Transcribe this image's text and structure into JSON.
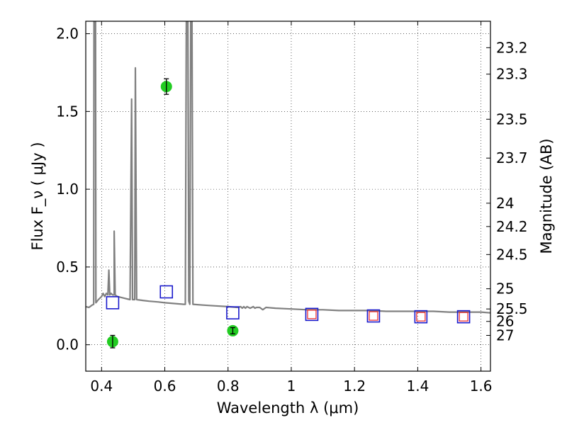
{
  "chart_data": {
    "type": "scatter",
    "xlabel": "Wavelength  λ (μm)",
    "ylabel": "Flux  F_ν  ( μJy )",
    "ylabel_right": "Magnitude (AB)",
    "xlim": [
      0.35,
      1.63
    ],
    "ylim": [
      -0.17,
      2.08
    ],
    "x_ticks": [
      0.4,
      0.6,
      0.8,
      1.0,
      1.2,
      1.4,
      1.6
    ],
    "x_tick_labels": [
      "0.4",
      "0.6",
      "0.8",
      "1",
      "1.2",
      "1.4",
      "1.6"
    ],
    "y_ticks": [
      0.0,
      0.5,
      1.0,
      1.5,
      2.0
    ],
    "y_tick_labels": [
      "0.0",
      "0.5",
      "1.0",
      "1.5",
      "2.0"
    ],
    "right_ticks": [
      {
        "label": "23.2",
        "flux": 1.91
      },
      {
        "label": "23.3",
        "flux": 1.74
      },
      {
        "label": "23.5",
        "flux": 1.45
      },
      {
        "label": "23.7",
        "flux": 1.2
      },
      {
        "label": "24",
        "flux": 0.91
      },
      {
        "label": "24.2",
        "flux": 0.76
      },
      {
        "label": "24.5",
        "flux": 0.58
      },
      {
        "label": "25",
        "flux": 0.36
      },
      {
        "label": "25.5",
        "flux": 0.23
      },
      {
        "label": "26",
        "flux": 0.15
      },
      {
        "label": "27",
        "flux": 0.06
      }
    ],
    "grid": true,
    "colors": {
      "spectrum": "#808080",
      "detections": "#22cc22",
      "model_boxes": "#1a1acc",
      "inner_boxes": "#ee2222"
    },
    "series": [
      {
        "kind": "line",
        "points": [
          [
            0.35,
            0.245
          ],
          [
            0.36,
            0.24
          ],
          [
            0.37,
            0.255
          ],
          [
            0.375,
            0.26
          ],
          [
            0.376,
            2.08
          ],
          [
            0.381,
            2.08
          ],
          [
            0.382,
            0.27
          ],
          [
            0.39,
            0.29
          ],
          [
            0.4,
            0.31
          ],
          [
            0.405,
            0.33
          ],
          [
            0.41,
            0.31
          ],
          [
            0.415,
            0.33
          ],
          [
            0.42,
            0.32
          ],
          [
            0.423,
            0.48
          ],
          [
            0.426,
            0.32
          ],
          [
            0.43,
            0.33
          ],
          [
            0.435,
            0.32
          ],
          [
            0.44,
            0.32
          ],
          [
            0.44,
            0.73
          ],
          [
            0.443,
            0.32
          ],
          [
            0.45,
            0.31
          ],
          [
            0.47,
            0.3
          ],
          [
            0.49,
            0.29
          ],
          [
            0.495,
            1.58
          ],
          [
            0.498,
            0.29
          ],
          [
            0.505,
            0.29
          ],
          [
            0.507,
            1.78
          ],
          [
            0.511,
            0.29
          ],
          [
            0.53,
            0.285
          ],
          [
            0.55,
            0.28
          ],
          [
            0.58,
            0.275
          ],
          [
            0.6,
            0.27
          ],
          [
            0.63,
            0.265
          ],
          [
            0.66,
            0.26
          ],
          [
            0.665,
            0.26
          ],
          [
            0.668,
            2.08
          ],
          [
            0.673,
            2.08
          ],
          [
            0.676,
            0.28
          ],
          [
            0.679,
            0.26
          ],
          [
            0.682,
            2.08
          ],
          [
            0.686,
            2.08
          ],
          [
            0.689,
            0.26
          ],
          [
            0.72,
            0.255
          ],
          [
            0.76,
            0.25
          ],
          [
            0.8,
            0.245
          ],
          [
            0.83,
            0.24
          ],
          [
            0.84,
            0.245
          ],
          [
            0.845,
            0.235
          ],
          [
            0.85,
            0.245
          ],
          [
            0.855,
            0.235
          ],
          [
            0.86,
            0.245
          ],
          [
            0.87,
            0.235
          ],
          [
            0.88,
            0.245
          ],
          [
            0.885,
            0.235
          ],
          [
            0.89,
            0.24
          ],
          [
            0.9,
            0.24
          ],
          [
            0.91,
            0.225
          ],
          [
            0.92,
            0.24
          ],
          [
            0.95,
            0.235
          ],
          [
            1.0,
            0.23
          ],
          [
            1.05,
            0.225
          ],
          [
            1.1,
            0.225
          ],
          [
            1.15,
            0.22
          ],
          [
            1.2,
            0.22
          ],
          [
            1.25,
            0.22
          ],
          [
            1.3,
            0.215
          ],
          [
            1.35,
            0.215
          ],
          [
            1.4,
            0.215
          ],
          [
            1.45,
            0.215
          ],
          [
            1.5,
            0.21
          ],
          [
            1.55,
            0.21
          ],
          [
            1.6,
            0.21
          ],
          [
            1.63,
            0.205
          ]
        ]
      },
      {
        "kind": "points",
        "marker": "circle-errorbar",
        "points": [
          {
            "x": 0.435,
            "y": 0.02,
            "err": 0.04
          },
          {
            "x": 0.605,
            "y": 1.66,
            "err": 0.05
          },
          {
            "x": 0.815,
            "y": 0.09,
            "err": 0.02
          }
        ]
      },
      {
        "kind": "points",
        "marker": "open-square",
        "points": [
          {
            "x": 0.435,
            "y": 0.27
          },
          {
            "x": 0.605,
            "y": 0.34
          },
          {
            "x": 0.815,
            "y": 0.205
          },
          {
            "x": 1.065,
            "y": 0.195
          },
          {
            "x": 1.26,
            "y": 0.185
          },
          {
            "x": 1.41,
            "y": 0.18
          },
          {
            "x": 1.545,
            "y": 0.18
          }
        ]
      },
      {
        "kind": "points",
        "marker": "open-square-small",
        "points": [
          {
            "x": 1.065,
            "y": 0.195
          },
          {
            "x": 1.26,
            "y": 0.185
          },
          {
            "x": 1.41,
            "y": 0.18
          },
          {
            "x": 1.545,
            "y": 0.18
          }
        ]
      }
    ]
  }
}
